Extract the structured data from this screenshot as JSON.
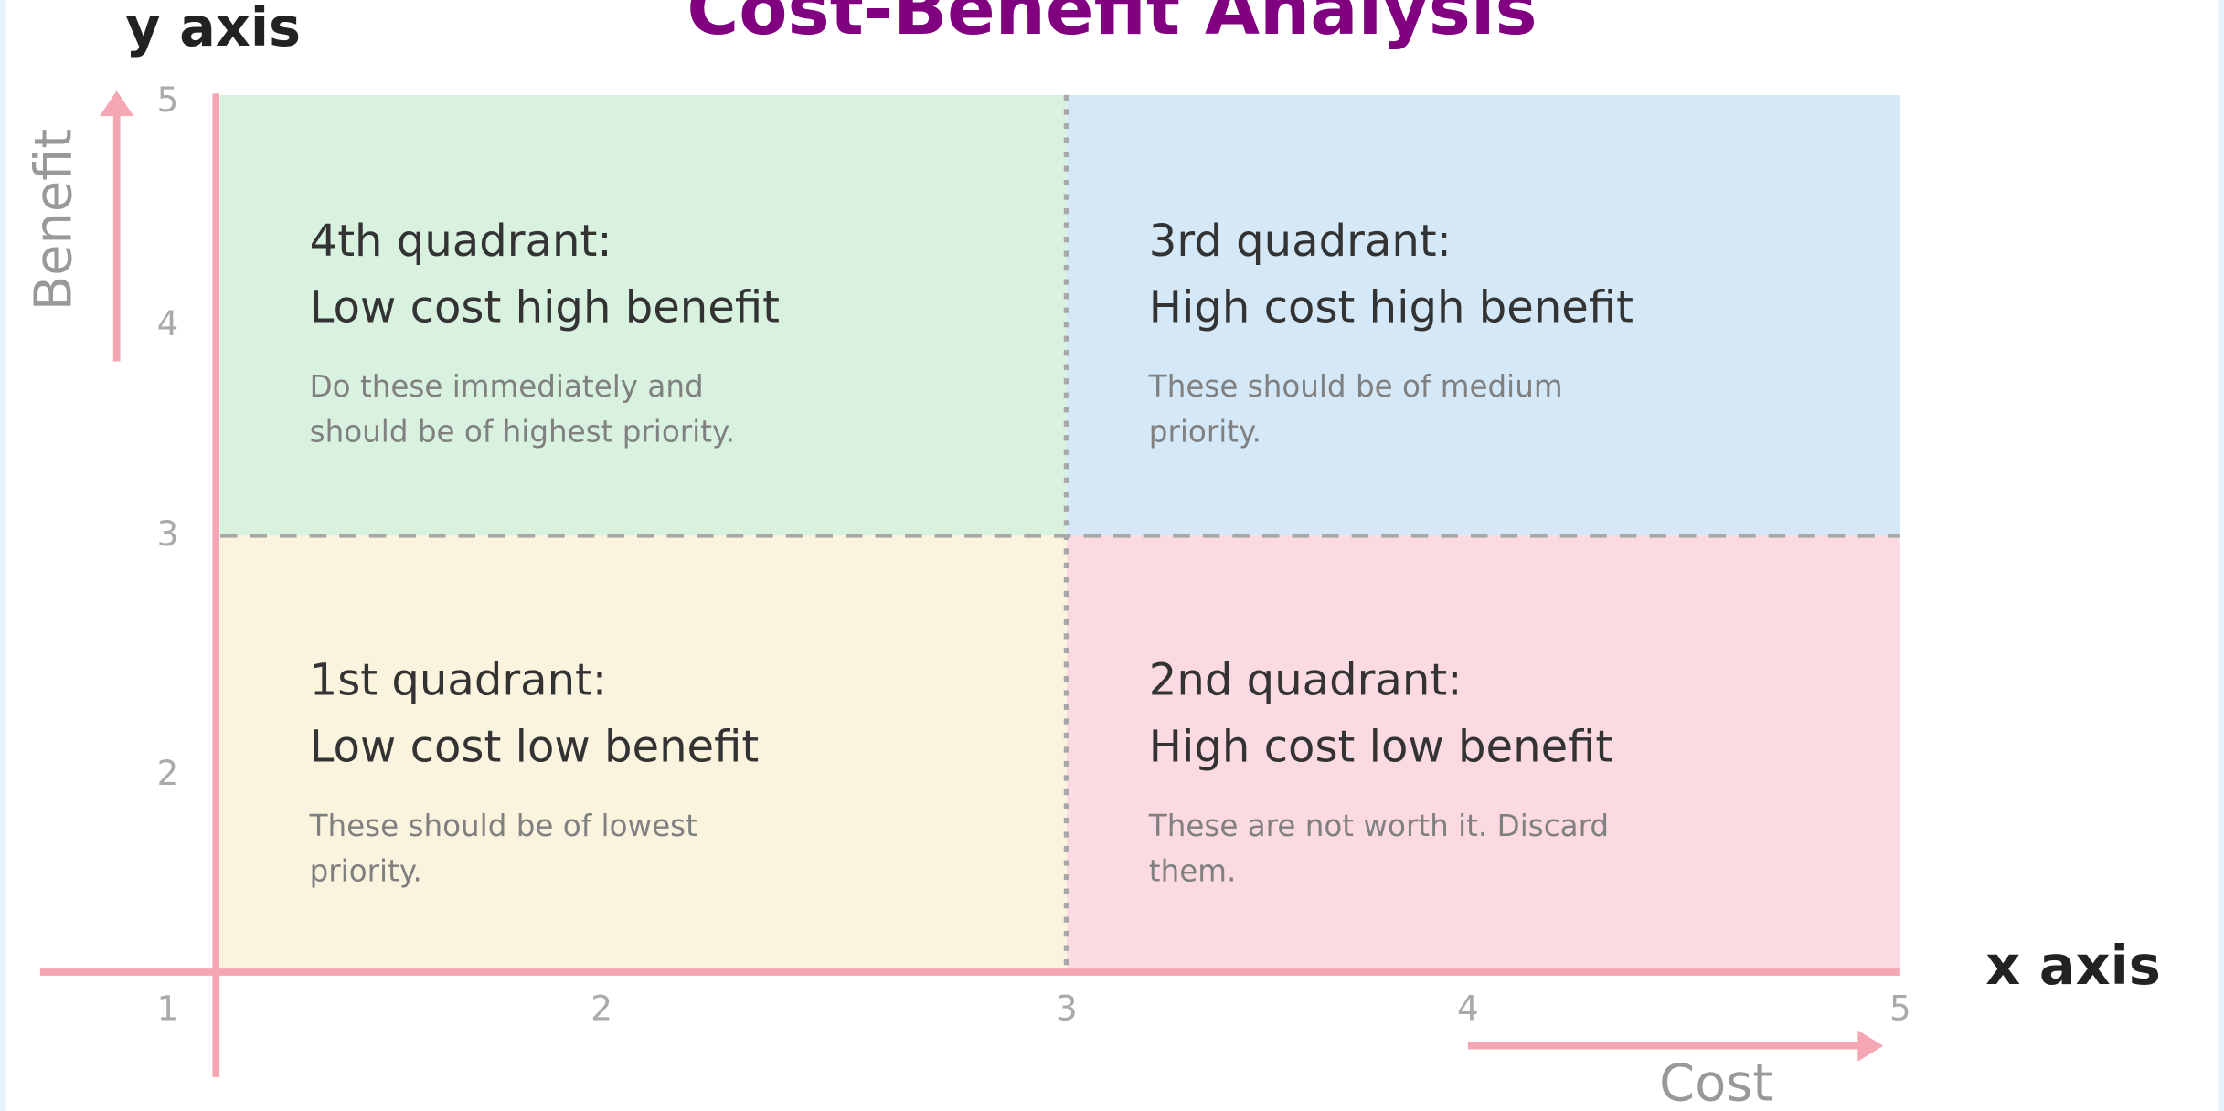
{
  "title": "Cost-Benefit Analysis",
  "y_axis": {
    "caption": "y axis",
    "label": "Benefit",
    "ticks": [
      "5",
      "4",
      "3",
      "2"
    ]
  },
  "x_axis": {
    "caption": "x axis",
    "label": "Cost",
    "ticks": [
      "1",
      "2",
      "3",
      "4",
      "5"
    ]
  },
  "quadrants": [
    {
      "heading": "4th quadrant:",
      "subheading": "Low cost high benefit",
      "description": [
        "Do these immediately and",
        "should be of highest priority."
      ]
    },
    {
      "heading": "3rd quadrant:",
      "subheading": "High cost high benefit",
      "description": [
        "These should be of medium",
        "priority."
      ]
    },
    {
      "heading": "1st quadrant:",
      "subheading": "Low cost low benefit",
      "description": [
        "These should be of lowest",
        "priority."
      ]
    },
    {
      "heading": "2nd quadrant:",
      "subheading": "High cost low benefit",
      "description": [
        "These are not worth it. Discard",
        "them."
      ]
    }
  ]
}
